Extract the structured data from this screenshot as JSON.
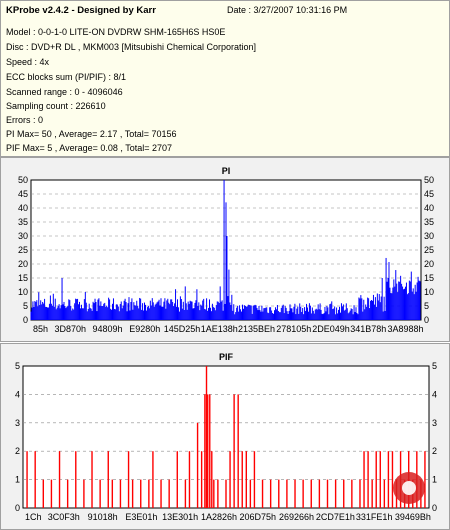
{
  "header": {
    "app_title": "KProbe v2.4.2 - Designed by Karr",
    "date_line": "Date : 3/27/2007 10:31:16 PM"
  },
  "info": {
    "model": "Model : 0-0-1-0 LITE-ON DVDRW SHM-165H6S HS0E",
    "disc": "Disc : DVD+R DL , MKM003 [Mitsubishi Chemical Corporation]",
    "speed": "Speed : 4x",
    "ecc": "ECC blocks sum (PI/PIF) : 8/1",
    "range": "Scanned range : 0 - 4096046",
    "sampling": "Sampling count : 226610",
    "errors": "Errors : 0",
    "pi_stats": "PI Max= 50 , Average= 2.17 , Total= 70156",
    "pif_stats": "PIF Max= 5 , Average= 0.08 , Total= 2707"
  },
  "chart_data": [
    {
      "type": "bar",
      "title": "PI",
      "color": "#0000ff",
      "ylim": [
        0,
        50
      ],
      "y_ticks": [
        "0",
        "5",
        "10",
        "15",
        "20",
        "25",
        "30",
        "35",
        "40",
        "45",
        "50"
      ],
      "x_ticks": [
        "85h",
        "3D870h",
        "94809h",
        "E9280h",
        "145D25h",
        "1AE138h",
        "2135BEh",
        "278105h",
        "2DE049h",
        "341B78h",
        "3A8988h"
      ],
      "samples": 402,
      "regions": [
        {
          "from": 0.0,
          "to": 0.5,
          "base": 3,
          "spread": 5
        },
        {
          "from": 0.5,
          "to": 0.51,
          "base": 5,
          "spread": 10
        },
        {
          "from": 0.51,
          "to": 0.84,
          "base": 2,
          "spread": 4
        },
        {
          "from": 0.84,
          "to": 0.91,
          "base": 3,
          "spread": 7
        },
        {
          "from": 0.91,
          "to": 1.0,
          "base": 9,
          "spread": 7
        }
      ],
      "spikes": [
        {
          "x": 0.08,
          "value": 15
        },
        {
          "x": 0.37,
          "value": 11
        },
        {
          "x": 0.395,
          "value": 12
        },
        {
          "x": 0.486,
          "value": 12
        },
        {
          "x": 0.496,
          "value": 50
        },
        {
          "x": 0.499,
          "value": 42
        },
        {
          "x": 0.503,
          "value": 30
        },
        {
          "x": 0.508,
          "value": 18
        },
        {
          "x": 0.515,
          "value": 9
        },
        {
          "x": 0.9,
          "value": 15
        }
      ]
    },
    {
      "type": "bar",
      "title": "PIF",
      "color": "#ff0000",
      "ylim": [
        0,
        5
      ],
      "y_ticks": [
        "0",
        "1",
        "2",
        "3",
        "4",
        "5"
      ],
      "x_ticks": [
        "1Ch",
        "3C0F3h",
        "91018h",
        "E3E01h",
        "13E301h",
        "1A2826h",
        "206D75h",
        "269266h",
        "2CD7E1h",
        "331FE1h",
        "39469Bh"
      ],
      "samples": 402,
      "bars": [
        {
          "x": 0.01,
          "value": 2
        },
        {
          "x": 0.03,
          "value": 2
        },
        {
          "x": 0.05,
          "value": 1
        },
        {
          "x": 0.07,
          "value": 1
        },
        {
          "x": 0.09,
          "value": 2
        },
        {
          "x": 0.11,
          "value": 1
        },
        {
          "x": 0.13,
          "value": 2
        },
        {
          "x": 0.15,
          "value": 1
        },
        {
          "x": 0.17,
          "value": 2
        },
        {
          "x": 0.19,
          "value": 1
        },
        {
          "x": 0.21,
          "value": 2
        },
        {
          "x": 0.22,
          "value": 1
        },
        {
          "x": 0.24,
          "value": 1
        },
        {
          "x": 0.26,
          "value": 2
        },
        {
          "x": 0.27,
          "value": 1
        },
        {
          "x": 0.29,
          "value": 1
        },
        {
          "x": 0.31,
          "value": 1
        },
        {
          "x": 0.32,
          "value": 2
        },
        {
          "x": 0.34,
          "value": 1
        },
        {
          "x": 0.36,
          "value": 1
        },
        {
          "x": 0.38,
          "value": 2
        },
        {
          "x": 0.4,
          "value": 1
        },
        {
          "x": 0.41,
          "value": 2
        },
        {
          "x": 0.43,
          "value": 3
        },
        {
          "x": 0.44,
          "value": 2
        },
        {
          "x": 0.448,
          "value": 4
        },
        {
          "x": 0.452,
          "value": 5
        },
        {
          "x": 0.455,
          "value": 4
        },
        {
          "x": 0.46,
          "value": 4
        },
        {
          "x": 0.465,
          "value": 2
        },
        {
          "x": 0.47,
          "value": 1
        },
        {
          "x": 0.48,
          "value": 1
        },
        {
          "x": 0.5,
          "value": 1
        },
        {
          "x": 0.51,
          "value": 2
        },
        {
          "x": 0.52,
          "value": 4
        },
        {
          "x": 0.53,
          "value": 4
        },
        {
          "x": 0.54,
          "value": 2
        },
        {
          "x": 0.55,
          "value": 2
        },
        {
          "x": 0.56,
          "value": 1
        },
        {
          "x": 0.57,
          "value": 2
        },
        {
          "x": 0.59,
          "value": 1
        },
        {
          "x": 0.61,
          "value": 1
        },
        {
          "x": 0.63,
          "value": 1
        },
        {
          "x": 0.65,
          "value": 1
        },
        {
          "x": 0.67,
          "value": 1
        },
        {
          "x": 0.69,
          "value": 1
        },
        {
          "x": 0.71,
          "value": 1
        },
        {
          "x": 0.73,
          "value": 1
        },
        {
          "x": 0.75,
          "value": 1
        },
        {
          "x": 0.77,
          "value": 1
        },
        {
          "x": 0.79,
          "value": 1
        },
        {
          "x": 0.81,
          "value": 1
        },
        {
          "x": 0.83,
          "value": 1
        },
        {
          "x": 0.84,
          "value": 2
        },
        {
          "x": 0.85,
          "value": 2
        },
        {
          "x": 0.86,
          "value": 1
        },
        {
          "x": 0.87,
          "value": 2
        },
        {
          "x": 0.88,
          "value": 2
        },
        {
          "x": 0.89,
          "value": 1
        },
        {
          "x": 0.9,
          "value": 2
        },
        {
          "x": 0.91,
          "value": 2
        },
        {
          "x": 0.92,
          "value": 1
        },
        {
          "x": 0.93,
          "value": 2
        },
        {
          "x": 0.94,
          "value": 1
        },
        {
          "x": 0.95,
          "value": 2
        },
        {
          "x": 0.96,
          "value": 1
        },
        {
          "x": 0.97,
          "value": 2
        },
        {
          "x": 0.98,
          "value": 1
        },
        {
          "x": 0.99,
          "value": 2
        }
      ]
    }
  ]
}
